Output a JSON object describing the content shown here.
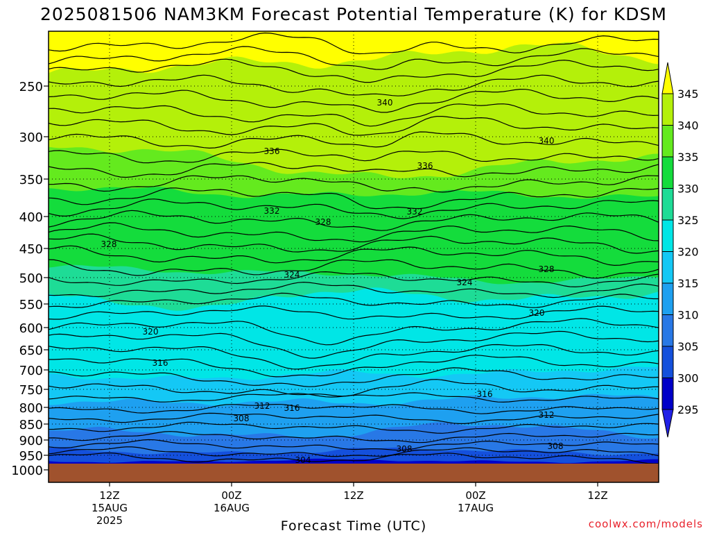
{
  "chart_data": {
    "type": "contour",
    "title": "2025081506 NAM3KM Forecast Potential Temperature (K) for KDSM",
    "xlabel": "Forecast Time (UTC)",
    "credit": "coolwx.com/models",
    "y_axis": {
      "ticks": [
        "250",
        "300",
        "350",
        "400",
        "450",
        "500",
        "550",
        "600",
        "650",
        "700",
        "750",
        "800",
        "850",
        "900",
        "950",
        "1000"
      ],
      "range": [
        1000,
        200
      ],
      "scale": "log-pressure"
    },
    "x_axis": {
      "ticks": [
        {
          "label": "12Z",
          "sub1": "15AUG",
          "sub2": "2025",
          "hour": 6
        },
        {
          "label": "00Z",
          "sub1": "16AUG",
          "sub2": "",
          "hour": 18
        },
        {
          "label": "12Z",
          "sub1": "",
          "sub2": "",
          "hour": 30
        },
        {
          "label": "00Z",
          "sub1": "17AUG",
          "sub2": "",
          "hour": 42
        },
        {
          "label": "12Z",
          "sub1": "",
          "sub2": "",
          "hour": 54
        }
      ],
      "range_hours": [
        0,
        60
      ]
    },
    "colorbar": {
      "levels": [
        "295",
        "300",
        "305",
        "310",
        "315",
        "320",
        "325",
        "330",
        "335",
        "340",
        "345"
      ],
      "colors": [
        "#2121e6",
        "#0000c8",
        "#1450dc",
        "#2878e6",
        "#1ea0f0",
        "#14c8f5",
        "#00e6e6",
        "#1edc96",
        "#14dc3c",
        "#64ea1e",
        "#b4f00a",
        "#ffff00"
      ]
    },
    "contour_labels": [
      "340",
      "340",
      "336",
      "336",
      "332",
      "332",
      "328",
      "328",
      "328",
      "324",
      "324",
      "320",
      "320",
      "316",
      "316",
      "316",
      "312",
      "312",
      "308",
      "308",
      "308",
      "304"
    ],
    "grid": true,
    "ground_color": "#a0522d"
  }
}
